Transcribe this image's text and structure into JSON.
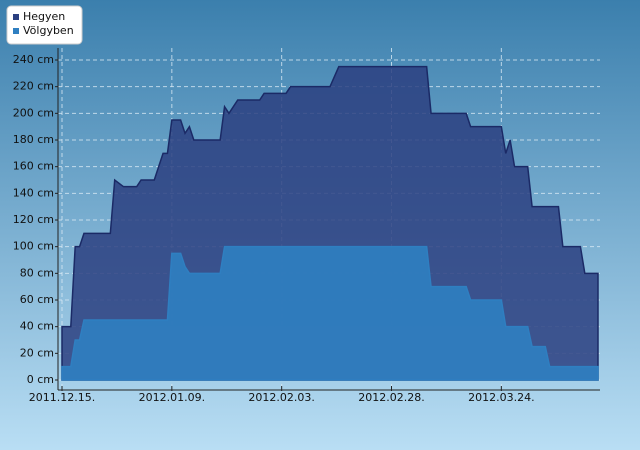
{
  "chart_data": {
    "type": "area",
    "x": [
      "2011-12-15",
      "2011-12-17",
      "2011-12-18",
      "2011-12-19",
      "2011-12-20",
      "2011-12-26",
      "2011-12-27",
      "2011-12-29",
      "2012-01-01",
      "2012-01-02",
      "2012-01-05",
      "2012-01-07",
      "2012-01-08",
      "2012-01-09",
      "2012-01-11",
      "2012-01-12",
      "2012-01-13",
      "2012-01-14",
      "2012-01-20",
      "2012-01-21",
      "2012-01-22",
      "2012-01-24",
      "2012-01-29",
      "2012-01-30",
      "2012-02-04",
      "2012-02-05",
      "2012-02-14",
      "2012-02-16",
      "2012-03-07",
      "2012-03-08",
      "2012-03-16",
      "2012-03-17",
      "2012-03-24",
      "2012-03-25",
      "2012-03-26",
      "2012-03-27",
      "2012-03-30",
      "2012-03-31",
      "2012-04-03",
      "2012-04-04",
      "2012-04-06",
      "2012-04-07",
      "2012-04-11",
      "2012-04-12",
      "2012-04-15"
    ],
    "series": [
      {
        "name": "Hegyen",
        "color": "#2b3f80",
        "values": [
          40,
          40,
          100,
          100,
          110,
          110,
          150,
          145,
          145,
          150,
          150,
          170,
          170,
          195,
          195,
          185,
          190,
          180,
          180,
          205,
          200,
          210,
          210,
          215,
          215,
          220,
          220,
          235,
          235,
          200,
          200,
          190,
          190,
          170,
          180,
          160,
          160,
          130,
          130,
          130,
          130,
          100,
          100,
          80,
          80
        ]
      },
      {
        "name": "Völgyben",
        "color": "#2f7fc1",
        "values": [
          10,
          10,
          30,
          30,
          45,
          45,
          45,
          45,
          45,
          45,
          45,
          45,
          45,
          95,
          95,
          85,
          80,
          80,
          80,
          100,
          100,
          100,
          100,
          100,
          100,
          100,
          100,
          100,
          100,
          70,
          70,
          60,
          60,
          40,
          40,
          40,
          40,
          25,
          25,
          10,
          10,
          10,
          10,
          10,
          10
        ]
      }
    ],
    "xlim": [
      "2011-12-15",
      "2012-04-15"
    ],
    "xticks": [
      {
        "value": "2011-12-15",
        "label": "2011.12.15."
      },
      {
        "value": "2012-01-09",
        "label": "2012.01.09."
      },
      {
        "value": "2012-02-03",
        "label": "2012.02.03."
      },
      {
        "value": "2012-02-28",
        "label": "2012.02.28."
      },
      {
        "value": "2012-03-24",
        "label": "2012.03.24."
      }
    ],
    "ylim": [
      0,
      240
    ],
    "yticks": [
      {
        "value": 0,
        "label": "0 cm"
      },
      {
        "value": 20,
        "label": "20 cm"
      },
      {
        "value": 40,
        "label": "40 cm"
      },
      {
        "value": 60,
        "label": "60 cm"
      },
      {
        "value": 80,
        "label": "80 cm"
      },
      {
        "value": 100,
        "label": "100 cm"
      },
      {
        "value": 120,
        "label": "120 cm"
      },
      {
        "value": 140,
        "label": "140 cm"
      },
      {
        "value": 160,
        "label": "160 cm"
      },
      {
        "value": 180,
        "label": "180 cm"
      },
      {
        "value": 200,
        "label": "200 cm"
      },
      {
        "value": 220,
        "label": "220 cm"
      },
      {
        "value": 240,
        "label": "240 cm"
      }
    ],
    "grid": true,
    "legend": "top-left"
  }
}
